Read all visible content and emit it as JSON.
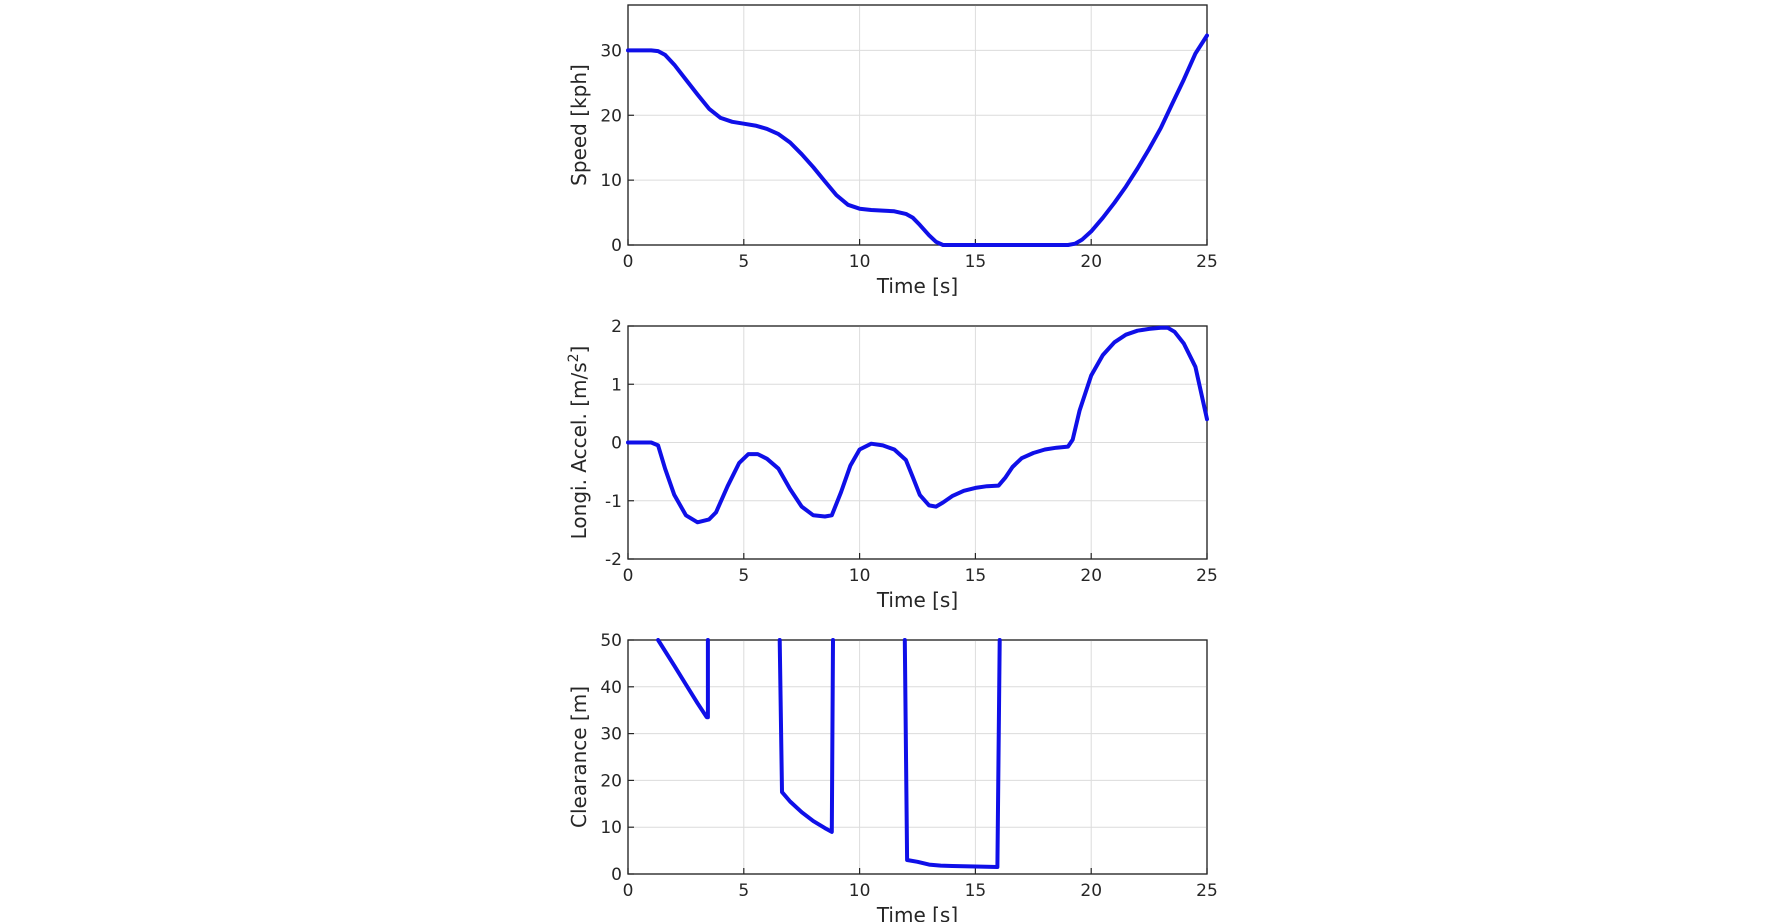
{
  "line_color": "#0f0fe8",
  "chart_data": [
    {
      "type": "line",
      "xlabel": "Time [s]",
      "ylabel": "Speed [kph]",
      "ylabel_sup": "",
      "ylabel_end": "",
      "xlim": [
        0,
        25
      ],
      "ylim": [
        0,
        37
      ],
      "xticks": [
        "0",
        "5",
        "10",
        "15",
        "20",
        "25"
      ],
      "yticks": [
        "0",
        "10",
        "20",
        "30"
      ],
      "grid": true,
      "series": [
        {
          "x": [
            0,
            0.5,
            1.0,
            1.3,
            1.6,
            2.0,
            2.5,
            3.0,
            3.5,
            4.0,
            4.5,
            5.0,
            5.5,
            6.0,
            6.5,
            7.0,
            7.5,
            8.0,
            8.5,
            9.0,
            9.5,
            10.0,
            10.5,
            11.0,
            11.5,
            12.0,
            12.3,
            12.6,
            13.0,
            13.3,
            13.6,
            14.0,
            15.0,
            16.0,
            17.0,
            18.0,
            19.0,
            19.3,
            19.6,
            20.0,
            20.5,
            21.0,
            21.5,
            22.0,
            22.5,
            23.0,
            23.5,
            24.0,
            24.5,
            25.0
          ],
          "y": [
            30.0,
            30.0,
            30.0,
            29.9,
            29.3,
            27.8,
            25.5,
            23.2,
            21.0,
            19.6,
            19.0,
            18.7,
            18.4,
            17.9,
            17.1,
            15.8,
            14.0,
            12.0,
            9.8,
            7.7,
            6.2,
            5.6,
            5.4,
            5.3,
            5.2,
            4.8,
            4.2,
            3.1,
            1.5,
            0.5,
            0.0,
            0.0,
            0.0,
            0.0,
            0.0,
            0.0,
            0.0,
            0.2,
            0.8,
            2.1,
            4.2,
            6.5,
            9.0,
            11.8,
            14.8,
            18.0,
            21.8,
            25.5,
            29.5,
            32.3
          ]
        }
      ]
    },
    {
      "type": "line",
      "xlabel": "Time [s]",
      "ylabel": "Longi. Accel. [m/s",
      "ylabel_sup": "2",
      "ylabel_end": "]",
      "xlim": [
        0,
        25
      ],
      "ylim": [
        -2,
        2
      ],
      "xticks": [
        "0",
        "5",
        "10",
        "15",
        "20",
        "25"
      ],
      "yticks": [
        "-2",
        "-1",
        "0",
        "1",
        "2"
      ],
      "grid": true,
      "series": [
        {
          "x": [
            0,
            0.6,
            1.0,
            1.3,
            1.6,
            2.0,
            2.5,
            3.0,
            3.5,
            3.8,
            4.3,
            4.8,
            5.2,
            5.6,
            6.0,
            6.5,
            7.0,
            7.5,
            8.0,
            8.5,
            8.8,
            9.2,
            9.6,
            10.0,
            10.5,
            11.0,
            11.5,
            12.0,
            12.3,
            12.6,
            13.0,
            13.3,
            13.6,
            14.0,
            14.5,
            15.0,
            15.5,
            16.0,
            16.3,
            16.6,
            17.0,
            17.5,
            18.0,
            18.5,
            19.0,
            19.2,
            19.5,
            20.0,
            20.5,
            21.0,
            21.5,
            22.0,
            22.5,
            23.0,
            23.3,
            23.6,
            24.0,
            24.5,
            25.0
          ],
          "y": [
            0.0,
            0.0,
            0.0,
            -0.05,
            -0.45,
            -0.9,
            -1.25,
            -1.37,
            -1.32,
            -1.2,
            -0.75,
            -0.35,
            -0.2,
            -0.2,
            -0.28,
            -0.45,
            -0.8,
            -1.1,
            -1.25,
            -1.27,
            -1.25,
            -0.85,
            -0.4,
            -0.12,
            -0.02,
            -0.05,
            -0.12,
            -0.3,
            -0.6,
            -0.9,
            -1.08,
            -1.1,
            -1.03,
            -0.92,
            -0.83,
            -0.78,
            -0.75,
            -0.74,
            -0.6,
            -0.42,
            -0.27,
            -0.18,
            -0.12,
            -0.09,
            -0.07,
            0.05,
            0.55,
            1.15,
            1.5,
            1.72,
            1.85,
            1.92,
            1.95,
            1.97,
            1.97,
            1.9,
            1.7,
            1.3,
            0.4
          ]
        }
      ]
    },
    {
      "type": "line",
      "xlabel": "Time [s]",
      "ylabel": "Clearance [m]",
      "ylabel_sup": "",
      "ylabel_end": "",
      "xlim": [
        0,
        25
      ],
      "ylim": [
        0,
        50
      ],
      "xticks": [
        "0",
        "5",
        "10",
        "15",
        "20",
        "25"
      ],
      "yticks": [
        "0",
        "10",
        "20",
        "30",
        "40",
        "50"
      ],
      "grid": true,
      "series": [
        {
          "x": [
            1.3,
            2.0,
            2.5,
            3.0,
            3.4,
            3.45,
            3.45
          ],
          "y": [
            50,
            44.5,
            40.5,
            36.5,
            33.5,
            33.5,
            50
          ]
        },
        {
          "x": [
            6.55,
            6.65,
            7.0,
            7.5,
            8.0,
            8.5,
            8.8,
            8.85
          ],
          "y": [
            50,
            17.5,
            15.5,
            13.2,
            11.3,
            9.8,
            9.0,
            50
          ]
        },
        {
          "x": [
            11.95,
            12.05,
            12.5,
            13.0,
            13.5,
            14.0,
            15.0,
            15.95,
            16.05
          ],
          "y": [
            50,
            3.0,
            2.6,
            2.0,
            1.8,
            1.7,
            1.6,
            1.5,
            50
          ]
        }
      ]
    }
  ]
}
